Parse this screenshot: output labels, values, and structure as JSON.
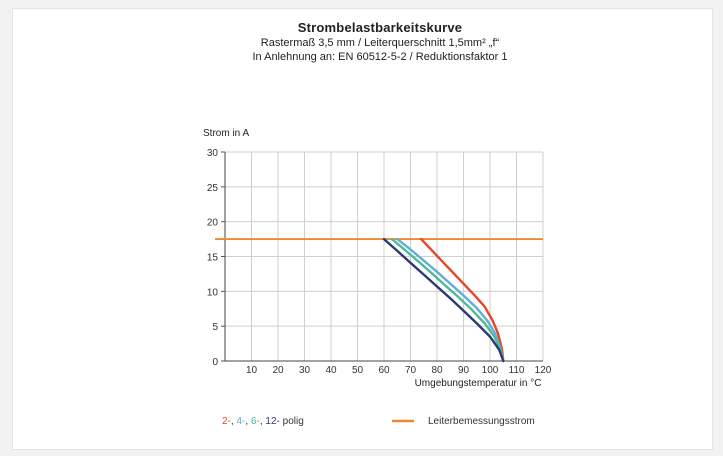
{
  "chart_data": {
    "type": "line",
    "title": "Strombelastbarkeitskurve",
    "subtitles": [
      "Rastermaß 3,5 mm / Leiterquerschnitt 1,5mm² „f“",
      "In Anlehnung an: EN 60512-5-2 / Reduktionsfaktor 1"
    ],
    "ylabel": "Strom in A",
    "xlabel": "Umgebungstemperatur in °C",
    "xlim": [
      0,
      120
    ],
    "ylim": [
      0,
      30
    ],
    "xticks": [
      10,
      20,
      30,
      40,
      50,
      60,
      70,
      80,
      90,
      100,
      110,
      120
    ],
    "yticks": [
      0,
      5,
      10,
      15,
      20,
      25,
      30
    ],
    "origin_label": "0",
    "grid": true,
    "limit_line": {
      "name": "Leiterbemessungsstrom",
      "y": 17.5,
      "color": "#f08a30"
    },
    "series": [
      {
        "name": "2-",
        "color": "#e8452a",
        "x": [
          74,
          78,
          82,
          86,
          90,
          94,
          98,
          101,
          103,
          104.5,
          105
        ],
        "y": [
          17.5,
          15.9,
          14.3,
          12.7,
          11.1,
          9.5,
          7.8,
          5.8,
          4.0,
          1.8,
          0
        ]
      },
      {
        "name": "4-",
        "color": "#5fb0d6",
        "x": [
          65,
          70,
          75,
          80,
          85,
          90,
          95,
          99,
          102,
          104,
          105
        ],
        "y": [
          17.5,
          16.0,
          14.4,
          12.8,
          11.1,
          9.4,
          7.6,
          5.8,
          3.9,
          1.8,
          0
        ]
      },
      {
        "name": "6-",
        "color": "#4fb99a",
        "x": [
          63,
          68,
          73,
          78,
          83,
          88,
          93,
          98,
          101.5,
          104,
          105
        ],
        "y": [
          17.5,
          15.9,
          14.3,
          12.6,
          10.9,
          9.2,
          7.4,
          5.4,
          3.6,
          1.6,
          0
        ]
      },
      {
        "name": "12-",
        "color": "#2b3a73",
        "x": [
          60,
          65,
          70,
          75,
          80,
          85,
          90,
          95,
          100,
          103.5,
          105
        ],
        "y": [
          17.5,
          15.8,
          14.1,
          12.4,
          10.7,
          9.0,
          7.2,
          5.4,
          3.5,
          1.6,
          0
        ]
      }
    ],
    "legend": {
      "position": "bottom",
      "series_prefixes": [
        "2-",
        "4-",
        "6-",
        "12-"
      ],
      "series_separator": ",",
      "series_suffix": "polig",
      "limit_label": "Leiterbemessungsstrom"
    }
  }
}
